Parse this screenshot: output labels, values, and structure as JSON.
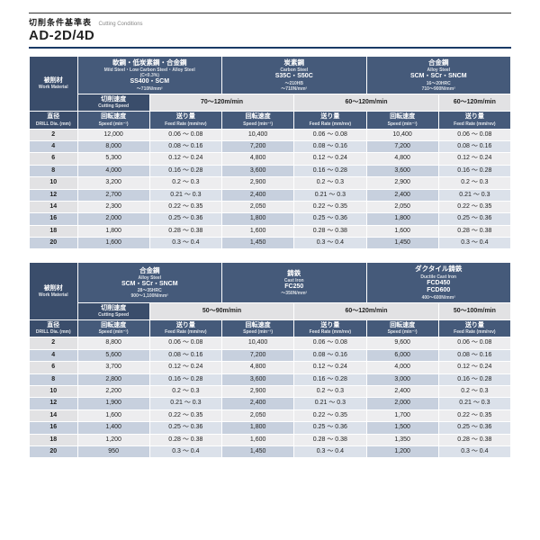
{
  "heading": {
    "jp": "切削条件基準表",
    "en": "Cutting Conditions",
    "model": "AD-2D/4D"
  },
  "labels": {
    "work_mat": "被削材",
    "work_mat_en": "Work Material",
    "cut_speed": "切削速度",
    "cut_speed_en": "Cutting Speed",
    "dia": "直径",
    "dia_en": "DRILL Dia. (mm)",
    "rot": "回転速度",
    "rot_en": "Speed (min⁻¹)",
    "feed": "送り量",
    "feed_en": "Feed Rate (mm/rev)"
  },
  "tables": [
    {
      "materials": [
        {
          "title": "軟鋼・低炭素鋼・合金鋼",
          "title_en": "Mild Steel・Low Carbon Steel・Alloy Steel",
          "spec": "(C<0.3%)",
          "grade": "SS400・SCM",
          "hard": "～710N/mm²",
          "speed": "70～120m/min"
        },
        {
          "title": "炭素鋼",
          "title_en": "Carbon Steel",
          "spec": "",
          "grade": "S35C・S50C",
          "hard": "～210HB\n～710N/mm²",
          "speed": "60～120m/min"
        },
        {
          "title": "合金鋼",
          "title_en": "Alloy Steel",
          "spec": "",
          "grade": "SCM・SCr・SNCM",
          "hard": "16～20HRC\n710～900N/mm²",
          "speed": "60～120m/min"
        }
      ],
      "rows": [
        {
          "d": "2",
          "v": [
            [
              "12,000",
              "0.06 ～ 0.08"
            ],
            [
              "10,400",
              "0.06 ～ 0.08"
            ],
            [
              "10,400",
              "0.06 ～ 0.08"
            ]
          ]
        },
        {
          "d": "4",
          "v": [
            [
              "8,000",
              "0.08 ～ 0.16"
            ],
            [
              "7,200",
              "0.08 ～ 0.16"
            ],
            [
              "7,200",
              "0.08 ～ 0.16"
            ]
          ]
        },
        {
          "d": "6",
          "v": [
            [
              "5,300",
              "0.12 ～ 0.24"
            ],
            [
              "4,800",
              "0.12 ～ 0.24"
            ],
            [
              "4,800",
              "0.12 ～ 0.24"
            ]
          ]
        },
        {
          "d": "8",
          "v": [
            [
              "4,000",
              "0.16 ～ 0.28"
            ],
            [
              "3,600",
              "0.16 ～ 0.28"
            ],
            [
              "3,600",
              "0.16 ～ 0.28"
            ]
          ]
        },
        {
          "d": "10",
          "v": [
            [
              "3,200",
              "0.2 ～ 0.3"
            ],
            [
              "2,900",
              "0.2 ～ 0.3"
            ],
            [
              "2,900",
              "0.2 ～ 0.3"
            ]
          ]
        },
        {
          "d": "12",
          "v": [
            [
              "2,700",
              "0.21 ～ 0.3"
            ],
            [
              "2,400",
              "0.21 ～ 0.3"
            ],
            [
              "2,400",
              "0.21 ～ 0.3"
            ]
          ]
        },
        {
          "d": "14",
          "v": [
            [
              "2,300",
              "0.22 ～ 0.35"
            ],
            [
              "2,050",
              "0.22 ～ 0.35"
            ],
            [
              "2,050",
              "0.22 ～ 0.35"
            ]
          ]
        },
        {
          "d": "16",
          "v": [
            [
              "2,000",
              "0.25 ～ 0.36"
            ],
            [
              "1,800",
              "0.25 ～ 0.36"
            ],
            [
              "1,800",
              "0.25 ～ 0.36"
            ]
          ]
        },
        {
          "d": "18",
          "v": [
            [
              "1,800",
              "0.28 ～ 0.38"
            ],
            [
              "1,600",
              "0.28 ～ 0.38"
            ],
            [
              "1,600",
              "0.28 ～ 0.38"
            ]
          ]
        },
        {
          "d": "20",
          "v": [
            [
              "1,600",
              "0.3 ～ 0.4"
            ],
            [
              "1,450",
              "0.3 ～ 0.4"
            ],
            [
              "1,450",
              "0.3 ～ 0.4"
            ]
          ]
        }
      ]
    },
    {
      "materials": [
        {
          "title": "合金鋼",
          "title_en": "Alloy Steel",
          "spec": "",
          "grade": "SCM・SCr・SNCM",
          "hard": "28～35HRC\n900～1,100N/mm²",
          "speed": "50～90m/min"
        },
        {
          "title": "鋳鉄",
          "title_en": "Cast Iron",
          "spec": "",
          "grade": "FC250",
          "hard": "～350N/mm²",
          "speed": "60～120m/min"
        },
        {
          "title": "ダクタイル鋳鉄",
          "title_en": "Ductile Cast Iron",
          "spec": "",
          "grade": "FCD450\nFCD600",
          "hard": "400～600N/mm²",
          "speed": "50～100m/min"
        }
      ],
      "rows": [
        {
          "d": "2",
          "v": [
            [
              "8,800",
              "0.06 ～ 0.08"
            ],
            [
              "10,400",
              "0.06 ～ 0.08"
            ],
            [
              "9,600",
              "0.06 ～ 0.08"
            ]
          ]
        },
        {
          "d": "4",
          "v": [
            [
              "5,600",
              "0.08 ～ 0.16"
            ],
            [
              "7,200",
              "0.08 ～ 0.16"
            ],
            [
              "6,000",
              "0.08 ～ 0.16"
            ]
          ]
        },
        {
          "d": "6",
          "v": [
            [
              "3,700",
              "0.12 ～ 0.24"
            ],
            [
              "4,800",
              "0.12 ～ 0.24"
            ],
            [
              "4,000",
              "0.12 ～ 0.24"
            ]
          ]
        },
        {
          "d": "8",
          "v": [
            [
              "2,800",
              "0.16 ～ 0.28"
            ],
            [
              "3,600",
              "0.16 ～ 0.28"
            ],
            [
              "3,000",
              "0.16 ～ 0.28"
            ]
          ]
        },
        {
          "d": "10",
          "v": [
            [
              "2,200",
              "0.2 ～ 0.3"
            ],
            [
              "2,900",
              "0.2 ～ 0.3"
            ],
            [
              "2,400",
              "0.2 ～ 0.3"
            ]
          ]
        },
        {
          "d": "12",
          "v": [
            [
              "1,900",
              "0.21 ～ 0.3"
            ],
            [
              "2,400",
              "0.21 ～ 0.3"
            ],
            [
              "2,000",
              "0.21 ～ 0.3"
            ]
          ]
        },
        {
          "d": "14",
          "v": [
            [
              "1,600",
              "0.22 ～ 0.35"
            ],
            [
              "2,050",
              "0.22 ～ 0.35"
            ],
            [
              "1,700",
              "0.22 ～ 0.35"
            ]
          ]
        },
        {
          "d": "16",
          "v": [
            [
              "1,400",
              "0.25 ～ 0.36"
            ],
            [
              "1,800",
              "0.25 ～ 0.36"
            ],
            [
              "1,500",
              "0.25 ～ 0.36"
            ]
          ]
        },
        {
          "d": "18",
          "v": [
            [
              "1,200",
              "0.28 ～ 0.38"
            ],
            [
              "1,600",
              "0.28 ～ 0.38"
            ],
            [
              "1,350",
              "0.28 ～ 0.38"
            ]
          ]
        },
        {
          "d": "20",
          "v": [
            [
              "950",
              "0.3 ～ 0.4"
            ],
            [
              "1,450",
              "0.3 ～ 0.4"
            ],
            [
              "1,200",
              "0.3 ～ 0.4"
            ]
          ]
        }
      ]
    }
  ],
  "style": {
    "dark": "#455a7a",
    "darker": "#3a4d6b",
    "grey": "#e2e2e4",
    "grey2": "#ededef",
    "blue1": "#c7d0de",
    "blue2": "#dbe1ea"
  }
}
